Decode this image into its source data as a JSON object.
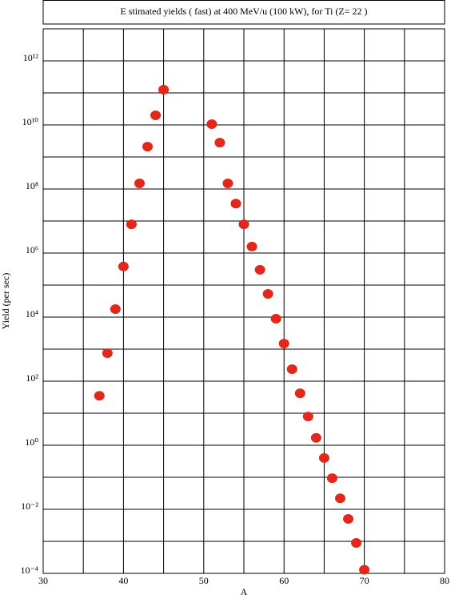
{
  "chart_data": {
    "type": "scatter",
    "title": "E stimated yields ( fast) at 400 MeV/u (100 kW), for Ti (Z= 22 )",
    "x_label": "A",
    "y_label": "Yield (per sec)",
    "log_y": true,
    "grid": true,
    "color": "#e2281b",
    "x": [
      37,
      38,
      39,
      40,
      41,
      42,
      43,
      44,
      45,
      51,
      52,
      53,
      54,
      55,
      56,
      57,
      58,
      59,
      60,
      61,
      62,
      63,
      64,
      65,
      66,
      67,
      68,
      69,
      70
    ],
    "values": [
      35,
      750,
      17800,
      380000,
      7900000,
      150000000,
      2100000000,
      20000000000,
      126000000000,
      10600000000,
      2800000000,
      150000000,
      35000000,
      7900000,
      1600000,
      300000,
      53000,
      8900,
      1500,
      237,
      42,
      7.9,
      1.7,
      0.4,
      0.094,
      0.022,
      0.005,
      0.00089,
      0.00013
    ],
    "xlim": [
      30,
      80
    ],
    "xticks": [
      30,
      40,
      50,
      60,
      70,
      80
    ],
    "minor_xticks": [
      35,
      45,
      55,
      65,
      75
    ],
    "ylim": [
      0.0001,
      10000000000000.0
    ],
    "yticks": [
      {
        "value": 0.0001,
        "label": "10⁻⁴"
      },
      {
        "value": 0.01,
        "label": "10⁻²"
      },
      {
        "value": 1,
        "label": "10⁰"
      },
      {
        "value": 100,
        "label": "10²"
      },
      {
        "value": 10000,
        "label": "10⁴"
      },
      {
        "value": 1000000,
        "label": "10⁶"
      },
      {
        "value": 100000000,
        "label": "10⁸"
      },
      {
        "value": 10000000000,
        "label": "10¹⁰"
      },
      {
        "value": 1000000000000,
        "label": "10¹²"
      }
    ],
    "minor_yticks": [
      0.001,
      0.1,
      10,
      1000,
      100000,
      10000000,
      1000000000,
      100000000000,
      10000000000000.0
    ]
  }
}
